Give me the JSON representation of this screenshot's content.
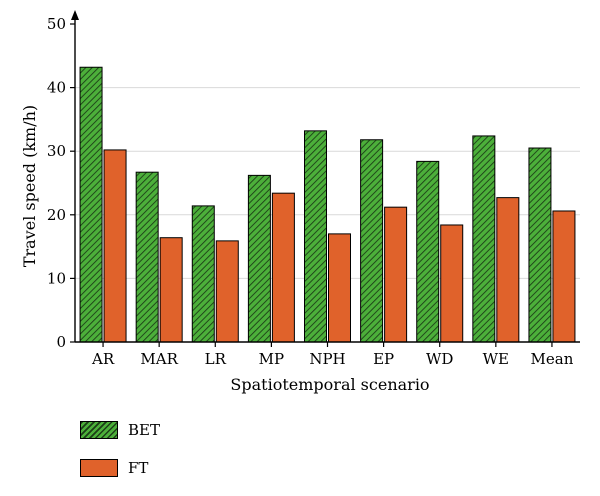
{
  "chart_data": {
    "type": "bar",
    "xlabel": "Spatiotemporal scenario",
    "ylabel": "Travel speed (km/h)",
    "ylim": [
      0,
      50
    ],
    "yticks": [
      0,
      10,
      20,
      30,
      40,
      50
    ],
    "grid": "horizontal",
    "legend_position": "bottom-left",
    "categories": [
      "AR",
      "MAR",
      "LR",
      "MP",
      "NPH",
      "EP",
      "WD",
      "WE",
      "Mean"
    ],
    "series": [
      {
        "name": "BET",
        "color": "#4caf3a",
        "pattern": "diagonal-hatch",
        "values": [
          43.2,
          26.7,
          21.4,
          26.2,
          33.2,
          31.8,
          28.4,
          32.4,
          30.5
        ]
      },
      {
        "name": "FT",
        "color": "#e0622b",
        "pattern": "solid",
        "values": [
          30.2,
          16.4,
          15.9,
          23.4,
          17.0,
          21.2,
          18.4,
          22.7,
          20.6
        ]
      }
    ]
  }
}
